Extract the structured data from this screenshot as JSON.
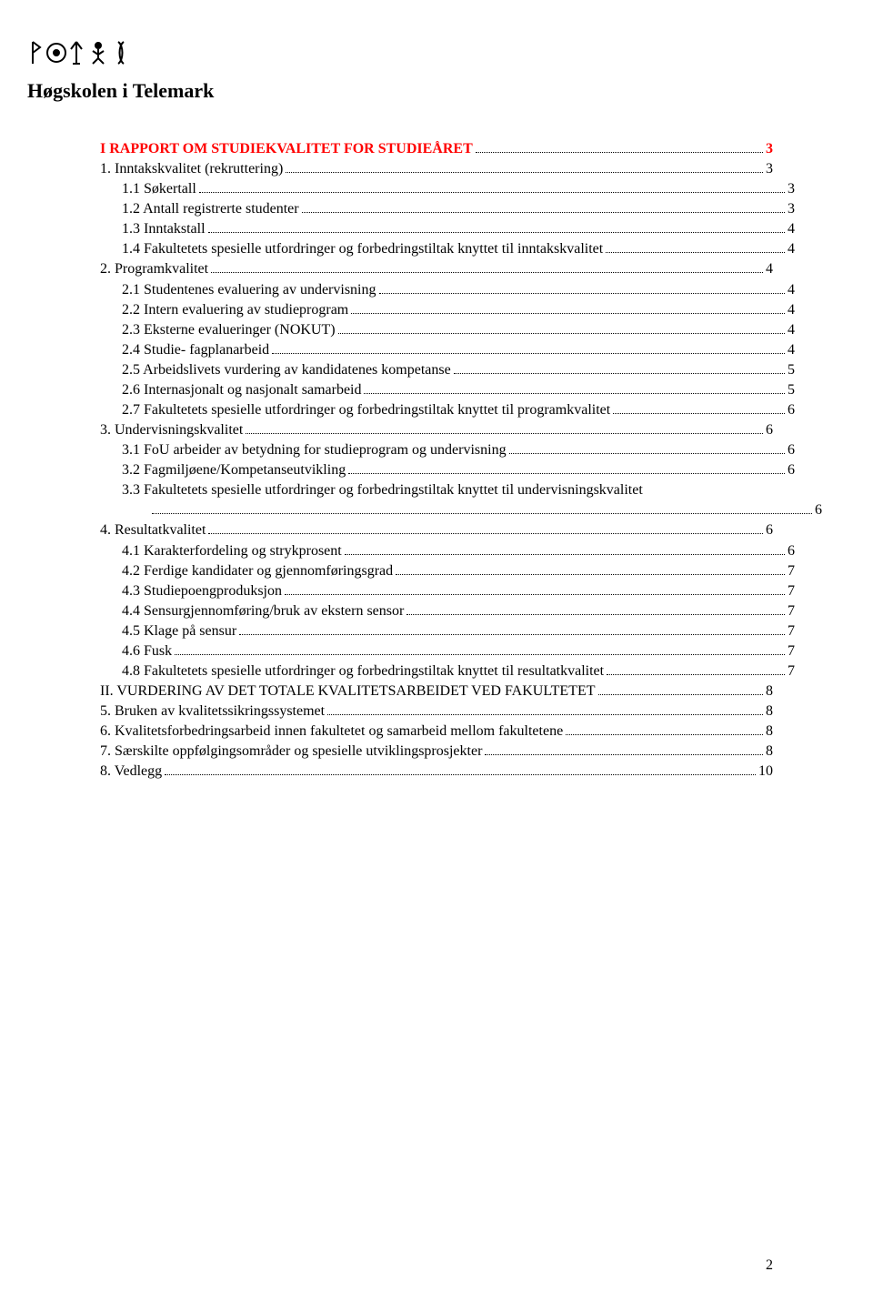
{
  "header": {
    "school_name": "Høgskolen i Telemark",
    "logo_glyphs": "ᛟ ⊙ ᛉ ᚨ ᛋ"
  },
  "colors": {
    "heading_color": "#ff0000",
    "text_color": "#000000",
    "background": "#ffffff"
  },
  "font": {
    "family": "Times New Roman",
    "body_size": 16,
    "heading_size": 16
  },
  "page_footer": "2",
  "toc": [
    {
      "label": "I RAPPORT OM STUDIEKVALITET FOR STUDIEÅRET",
      "page": "3",
      "indent": 0,
      "style": "heading"
    },
    {
      "label": "1. Inntakskvalitet (rekruttering)",
      "page": "3",
      "indent": 0,
      "style": "normal"
    },
    {
      "label": "1.1 Søkertall",
      "page": "3",
      "indent": 1,
      "style": "normal"
    },
    {
      "label": "1.2 Antall registrerte studenter",
      "page": "3",
      "indent": 1,
      "style": "normal"
    },
    {
      "label": "1.3 Inntakstall",
      "page": "4",
      "indent": 1,
      "style": "normal"
    },
    {
      "label": "1.4 Fakultetets spesielle utfordringer og forbedringstiltak knyttet til inntakskvalitet",
      "page": "4",
      "indent": 1,
      "style": "normal"
    },
    {
      "label": "2. Programkvalitet",
      "page": "4",
      "indent": 0,
      "style": "normal"
    },
    {
      "label": "2.1 Studentenes evaluering av undervisning",
      "page": "4",
      "indent": 1,
      "style": "normal"
    },
    {
      "label": "2.2 Intern evaluering av studieprogram",
      "page": "4",
      "indent": 1,
      "style": "normal"
    },
    {
      "label": "2.3 Eksterne evalueringer (NOKUT)",
      "page": "4",
      "indent": 1,
      "style": "normal"
    },
    {
      "label": "2.4 Studie- fagplanarbeid",
      "page": "4",
      "indent": 1,
      "style": "normal"
    },
    {
      "label": "2.5 Arbeidslivets vurdering av kandidatenes kompetanse",
      "page": "5",
      "indent": 1,
      "style": "normal"
    },
    {
      "label": "2.6 Internasjonalt og nasjonalt samarbeid",
      "page": "5",
      "indent": 1,
      "style": "normal"
    },
    {
      "label": "2.7 Fakultetets spesielle utfordringer og forbedringstiltak knyttet til programkvalitet",
      "page": "6",
      "indent": 1,
      "style": "normal"
    },
    {
      "label": "3. Undervisningskvalitet",
      "page": "6",
      "indent": 0,
      "style": "normal"
    },
    {
      "label": "3.1 FoU arbeider av betydning for studieprogram og undervisning",
      "page": "6",
      "indent": 1,
      "style": "normal"
    },
    {
      "label": "3.2 Fagmiljøene/Kompetanseutvikling",
      "page": "6",
      "indent": 1,
      "style": "normal"
    },
    {
      "label": "3.3 Fakultetets spesielle utfordringer og forbedringstiltak knyttet til undervisningskvalitet",
      "page": "6",
      "indent": 1,
      "style": "wrap"
    },
    {
      "label": "4. Resultatkvalitet",
      "page": "6",
      "indent": 0,
      "style": "normal"
    },
    {
      "label": "4.1 Karakterfordeling og strykprosent",
      "page": "6",
      "indent": 1,
      "style": "normal"
    },
    {
      "label": "4.2 Ferdige kandidater og gjennomføringsgrad",
      "page": "7",
      "indent": 1,
      "style": "normal"
    },
    {
      "label": "4.3 Studiepoengproduksjon",
      "page": "7",
      "indent": 1,
      "style": "normal"
    },
    {
      "label": "4.4 Sensurgjennomføring/bruk av ekstern sensor",
      "page": "7",
      "indent": 1,
      "style": "normal"
    },
    {
      "label": "4.5 Klage på sensur",
      "page": "7",
      "indent": 1,
      "style": "normal"
    },
    {
      "label": "4.6 Fusk",
      "page": "7",
      "indent": 1,
      "style": "normal"
    },
    {
      "label": "4.8 Fakultetets spesielle utfordringer og forbedringstiltak knyttet til resultatkvalitet",
      "page": "7",
      "indent": 1,
      "style": "normal"
    },
    {
      "label": "II. VURDERING AV DET TOTALE KVALITETSARBEIDET VED FAKULTETET",
      "page": "8",
      "indent": 0,
      "style": "normal"
    },
    {
      "label": "5. Bruken av kvalitetssikringssystemet",
      "page": "8",
      "indent": 0,
      "style": "normal"
    },
    {
      "label": "6. Kvalitetsforbedringsarbeid innen fakultetet og samarbeid mellom fakultetene",
      "page": "8",
      "indent": 0,
      "style": "normal"
    },
    {
      "label": "7. Særskilte oppfølgingsområder og spesielle utviklingsprosjekter",
      "page": "8",
      "indent": 0,
      "style": "normal"
    },
    {
      "label": "8. Vedlegg",
      "page": "10",
      "indent": 0,
      "style": "normal"
    }
  ]
}
